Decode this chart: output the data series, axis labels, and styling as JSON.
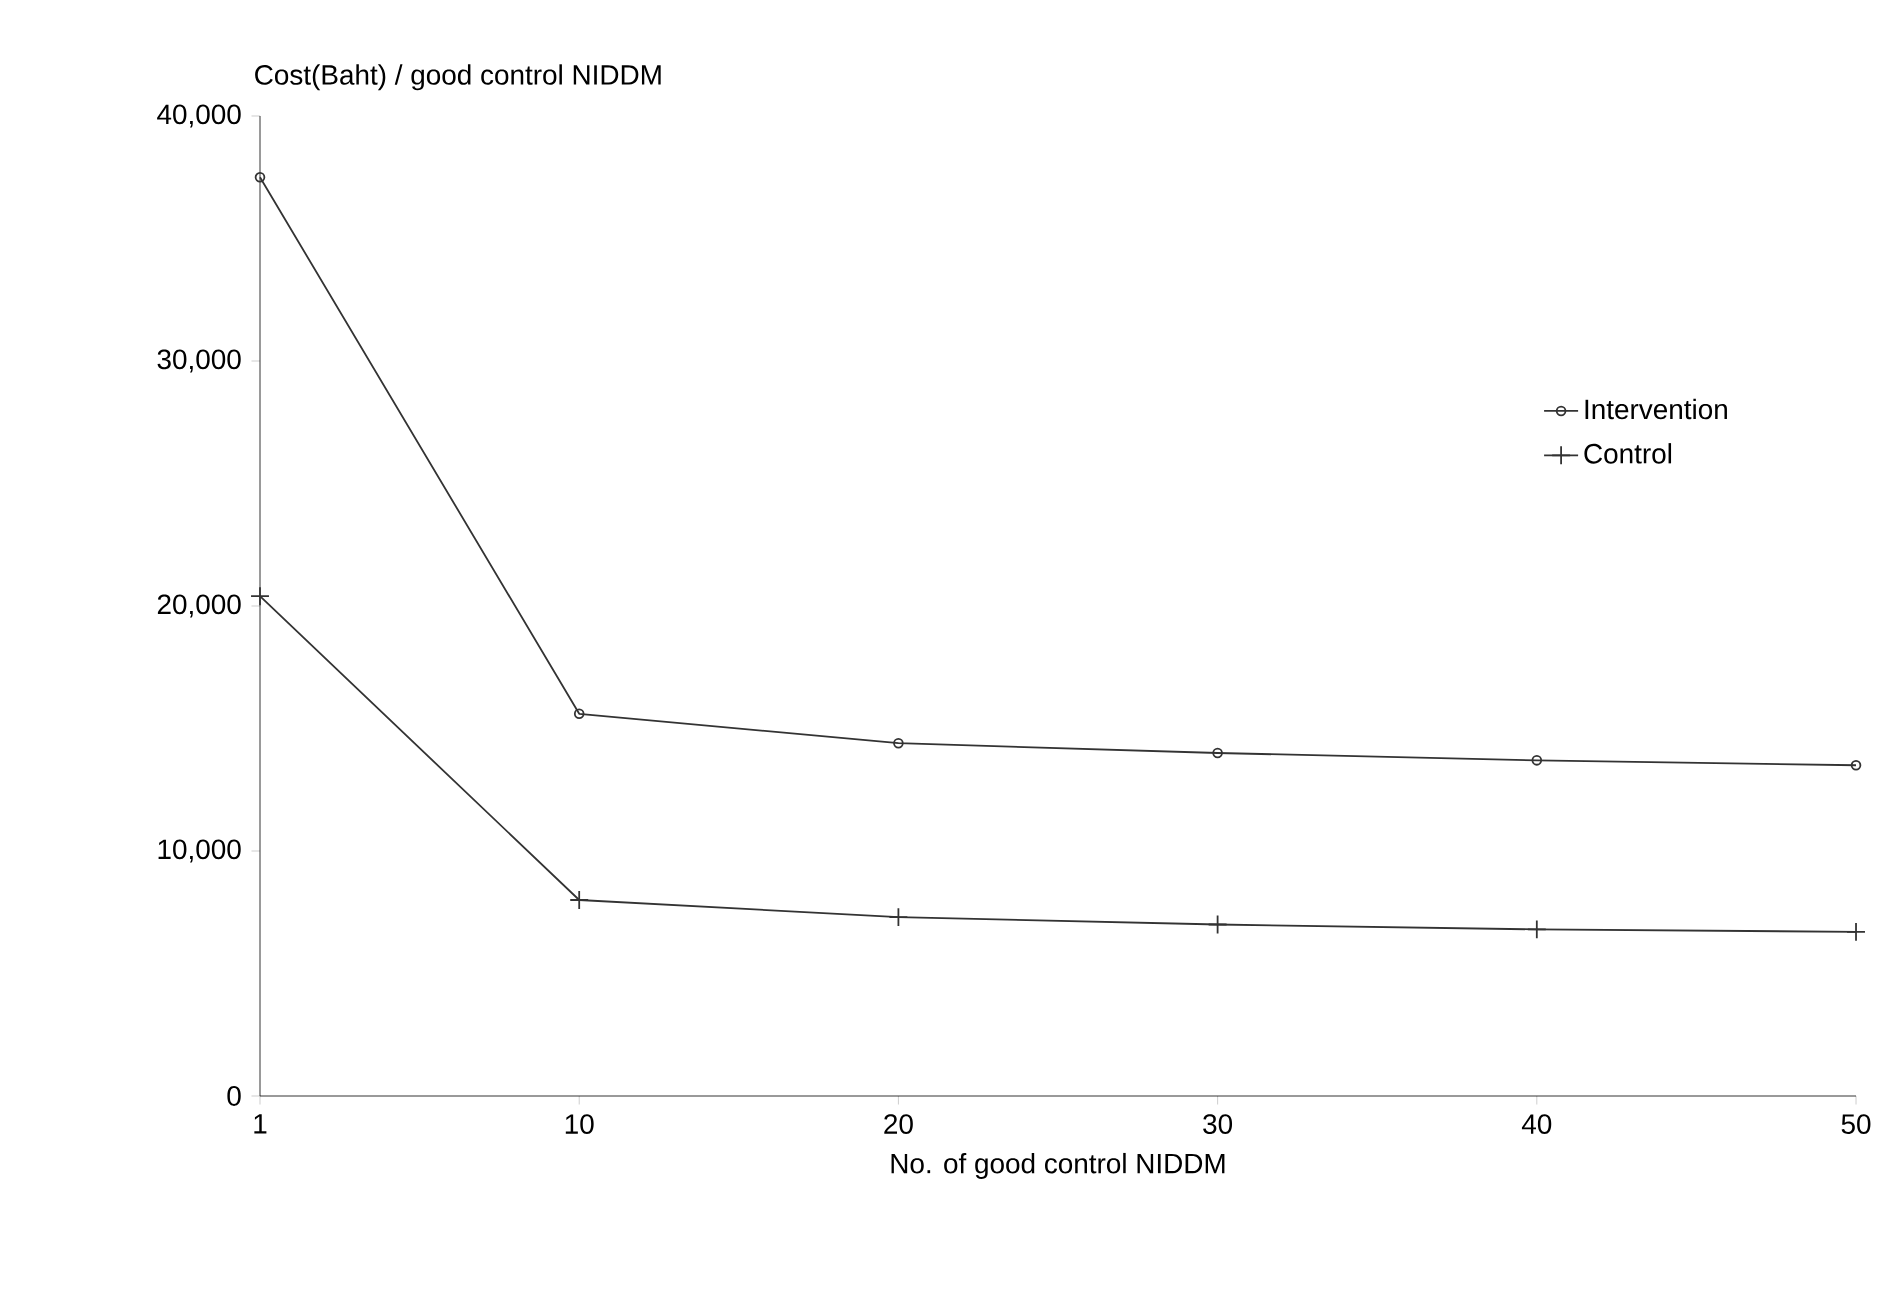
{
  "chart_data": {
    "type": "line",
    "ylabel": "Cost(Baht) / good control NIDDM",
    "xlabel": "No. of good control NIDDM",
    "categories": [
      "1",
      "10",
      "20",
      "30",
      "40",
      "50"
    ],
    "series": [
      {
        "name": "Intervention",
        "color": "#333333",
        "marker": "circle",
        "values": [
          37500,
          15600,
          14400,
          14000,
          13700,
          13500
        ]
      },
      {
        "name": "Control",
        "color": "#333333",
        "marker": "cross",
        "values": [
          20400,
          8000,
          7300,
          7000,
          6800,
          6700
        ]
      }
    ],
    "ylim": [
      0,
      40000
    ],
    "yticks": [
      {
        "value": 0,
        "label": "0"
      },
      {
        "value": 10000,
        "label": "10,000"
      },
      {
        "value": 20000,
        "label": "20,000"
      },
      {
        "value": 30000,
        "label": "30,000"
      },
      {
        "value": 40000,
        "label": "40,000"
      }
    ],
    "grid": false,
    "legend": "right"
  }
}
